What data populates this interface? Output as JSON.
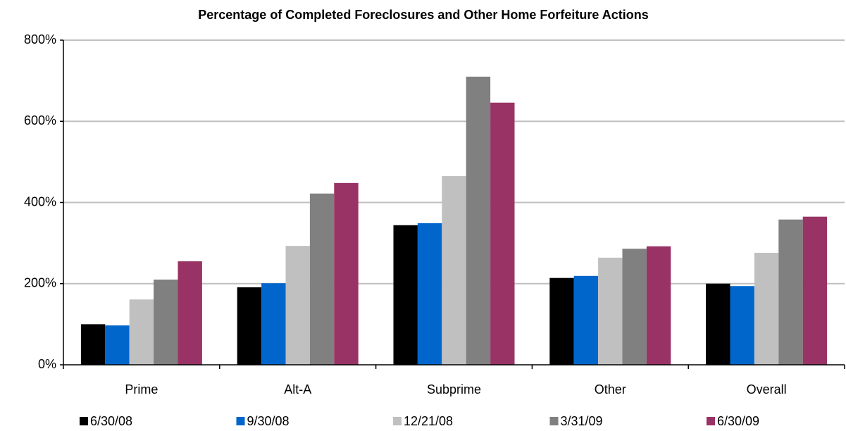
{
  "chart_data": {
    "type": "bar",
    "title": "Percentage of Completed Foreclosures and Other Home Forfeiture Actions",
    "categories": [
      "Prime",
      "Alt-A",
      "Subprime",
      "Other",
      "Overall"
    ],
    "series": [
      {
        "name": "6/30/08",
        "color": "#000000",
        "values": [
          100,
          191,
          344,
          214,
          200
        ]
      },
      {
        "name": "9/30/08",
        "color": "#0066cc",
        "values": [
          97,
          201,
          349,
          219,
          194
        ]
      },
      {
        "name": "12/21/08",
        "color": "#c0c0c0",
        "values": [
          161,
          293,
          465,
          264,
          276
        ]
      },
      {
        "name": "3/31/09",
        "color": "#808080",
        "values": [
          210,
          422,
          710,
          286,
          358
        ]
      },
      {
        "name": "6/30/09",
        "color": "#993366",
        "values": [
          255,
          448,
          646,
          292,
          365
        ]
      }
    ],
    "ylim": [
      0,
      800
    ],
    "yticks": [
      {
        "value": 0,
        "label": "0%"
      },
      {
        "value": 200,
        "label": "200%"
      },
      {
        "value": 400,
        "label": "400%"
      },
      {
        "value": 600,
        "label": "600%"
      },
      {
        "value": 800,
        "label": "800%"
      }
    ],
    "grid": true,
    "legend": "bottom"
  }
}
